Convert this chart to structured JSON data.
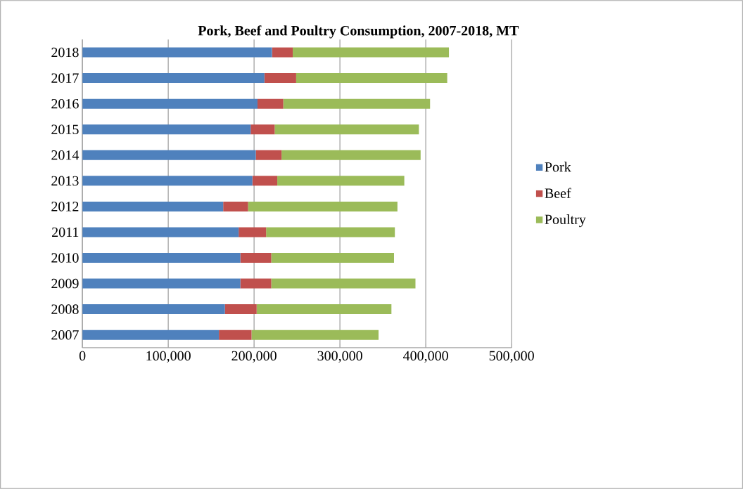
{
  "chart_data": {
    "type": "bar",
    "orientation": "horizontal",
    "stacked": true,
    "title": "Pork, Beef and Poultry Consumption, 2007-2018, MT",
    "categories": [
      "2018",
      "2017",
      "2016",
      "2015",
      "2014",
      "2013",
      "2012",
      "2011",
      "2010",
      "2009",
      "2008",
      "2007"
    ],
    "series": [
      {
        "name": "Pork",
        "color": "#4f81bd",
        "values": [
          221000,
          212000,
          204000,
          196000,
          202000,
          198000,
          164000,
          182000,
          184000,
          184000,
          166000,
          159000
        ]
      },
      {
        "name": "Beef",
        "color": "#c0504d",
        "values": [
          24000,
          37000,
          30000,
          28000,
          30000,
          29000,
          29000,
          32000,
          36000,
          36000,
          37000,
          38000
        ]
      },
      {
        "name": "Poultry",
        "color": "#9bbb59",
        "values": [
          182000,
          176000,
          171000,
          168000,
          162000,
          148000,
          174000,
          150000,
          143000,
          168000,
          157000,
          148000
        ]
      }
    ],
    "xlim": [
      0,
      500000
    ],
    "xticks": [
      {
        "value": 0,
        "label": "0"
      },
      {
        "value": 100000,
        "label": "100,000"
      },
      {
        "value": 200000,
        "label": "200,000"
      },
      {
        "value": 300000,
        "label": "300,000"
      },
      {
        "value": 400000,
        "label": "400,000"
      },
      {
        "value": 500000,
        "label": "500,000"
      }
    ],
    "grid": "x",
    "legend": "right"
  }
}
